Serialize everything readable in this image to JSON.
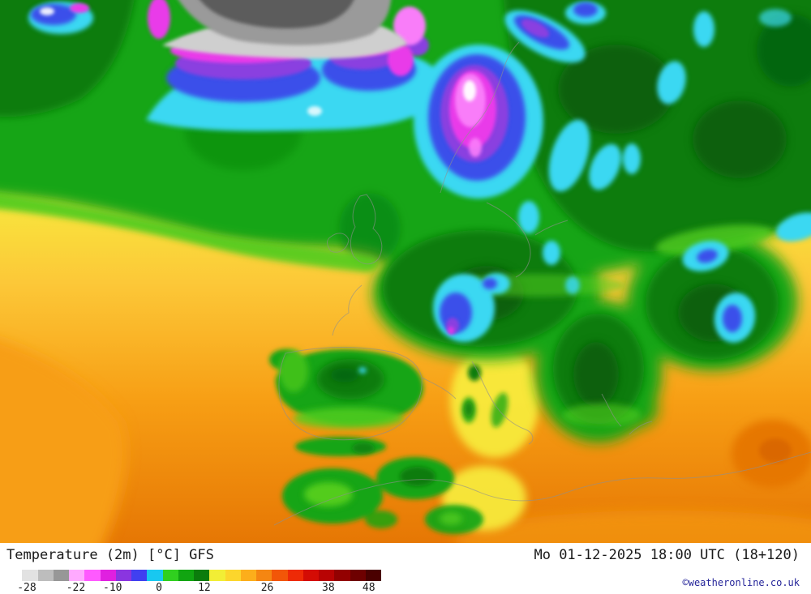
{
  "footer": {
    "title": "Temperature (2m) [°C] GFS",
    "datetime": "Mo 01-12-2025 18:00 UTC (18+120)",
    "copyright": "©weatheronline.co.uk",
    "colorbar": {
      "ticks": [
        {
          "label": "-28",
          "pos": 5.4
        },
        {
          "label": "-22",
          "pos": 18.5
        },
        {
          "label": "-10",
          "pos": 28.3
        },
        {
          "label": "0",
          "pos": 40.7
        },
        {
          "label": "12",
          "pos": 52.8
        },
        {
          "label": "26",
          "pos": 69.6
        },
        {
          "label": "38",
          "pos": 85.9
        },
        {
          "label": "48",
          "pos": 96.7
        }
      ],
      "segments": [
        "#ffffff",
        "#e2e2e2",
        "#bdbdbd",
        "#979797",
        "#ffaaff",
        "#ff5aff",
        "#e020e0",
        "#8a35e0",
        "#4040f0",
        "#18c8f0",
        "#30d01f",
        "#11a511",
        "#0b7c0c",
        "#f2ee35",
        "#fcd62c",
        "#fcae1b",
        "#f58612",
        "#f25608",
        "#ee2a06",
        "#d40c04",
        "#b80303",
        "#930101",
        "#6e0000",
        "#4a0000"
      ]
    }
  },
  "map": {
    "palette": {
      "white": "#ffffff",
      "gray_light": "#cfcfcf",
      "gray": "#9a9a9a",
      "gray_dark": "#5c5c5c",
      "pink": "#f97df9",
      "magenta": "#e93ae9",
      "purple": "#8a3fe0",
      "blue": "#3a50ea",
      "cyan": "#3bd8f2",
      "green_bright": "#52cc1e",
      "green": "#16a513",
      "green_dark": "#0b7c0c",
      "green_darker": "#07600a",
      "yellow": "#f7ee3e",
      "gold": "#fcc838",
      "orange": "#f79e14",
      "orange_dark": "#e67704",
      "orange_deep": "#d86400",
      "coastline": "#8f8f8f"
    }
  }
}
